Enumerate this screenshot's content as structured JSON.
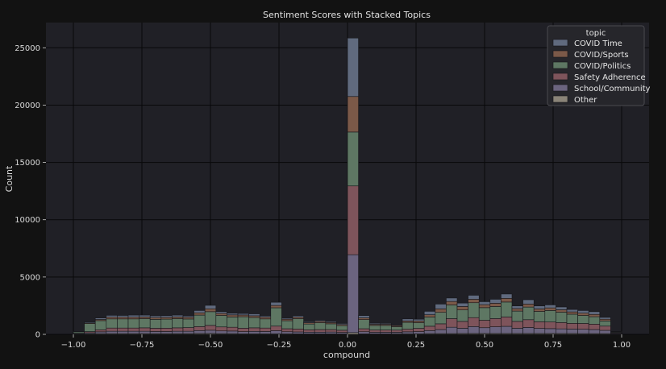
{
  "chart_data": {
    "type": "bar",
    "subtype": "stacked-histogram",
    "title": "Sentiment Scores with Stacked Topics",
    "xlabel": "compound",
    "ylabel": "Count",
    "xlim": [
      -1.1,
      1.1
    ],
    "ylim": [
      0,
      27200
    ],
    "xticks": [
      -1.0,
      -0.75,
      -0.5,
      -0.25,
      0.0,
      0.25,
      0.5,
      0.75,
      1.0
    ],
    "xtick_labels": [
      "−1.00",
      "−0.75",
      "−0.50",
      "−0.25",
      "0.00",
      "0.25",
      "0.50",
      "0.75",
      "1.00"
    ],
    "yticks": [
      0,
      5000,
      10000,
      15000,
      20000,
      25000
    ],
    "ytick_labels": [
      "0",
      "5000",
      "10000",
      "15000",
      "20000",
      "25000"
    ],
    "grid": true,
    "legend_title": "topic",
    "legend_position": "top-right",
    "bin_width": 0.04,
    "bin_starts": [
      -1.0,
      -0.96,
      -0.92,
      -0.88,
      -0.84,
      -0.8,
      -0.76,
      -0.72,
      -0.68,
      -0.64,
      -0.6,
      -0.56,
      -0.52,
      -0.48,
      -0.44,
      -0.4,
      -0.36,
      -0.32,
      -0.28,
      -0.24,
      -0.2,
      -0.16,
      -0.12,
      -0.08,
      -0.04,
      0.0,
      0.04,
      0.08,
      0.12,
      0.16,
      0.2,
      0.24,
      0.28,
      0.32,
      0.36,
      0.4,
      0.44,
      0.48,
      0.52,
      0.56,
      0.6,
      0.64,
      0.68,
      0.72,
      0.76,
      0.8,
      0.84,
      0.88,
      0.92,
      0.96
    ],
    "series": [
      {
        "name": "Other",
        "color": "#8a8478",
        "values": [
          50,
          60,
          70,
          70,
          70,
          70,
          70,
          70,
          70,
          70,
          70,
          80,
          80,
          70,
          70,
          60,
          60,
          60,
          60,
          60,
          50,
          50,
          50,
          50,
          50,
          150,
          50,
          50,
          50,
          60,
          60,
          60,
          70,
          70,
          70,
          80,
          80,
          80,
          80,
          80,
          80,
          80,
          80,
          80,
          80,
          80,
          70,
          70,
          70,
          40
        ]
      },
      {
        "name": "School/Community",
        "color": "#6b647f",
        "values": [
          30,
          80,
          150,
          200,
          200,
          200,
          200,
          180,
          180,
          200,
          200,
          250,
          280,
          230,
          220,
          180,
          200,
          190,
          260,
          170,
          160,
          140,
          140,
          150,
          120,
          6800,
          180,
          130,
          130,
          120,
          160,
          180,
          260,
          350,
          550,
          450,
          600,
          500,
          580,
          620,
          450,
          520,
          440,
          420,
          400,
          380,
          380,
          350,
          280,
          60
        ]
      },
      {
        "name": "Safety Adherence",
        "color": "#7e545b",
        "values": [
          20,
          100,
          180,
          280,
          280,
          280,
          300,
          280,
          290,
          300,
          320,
          350,
          420,
          350,
          330,
          300,
          310,
          300,
          400,
          260,
          260,
          210,
          230,
          220,
          190,
          6000,
          260,
          200,
          200,
          190,
          230,
          280,
          380,
          500,
          750,
          600,
          780,
          650,
          720,
          820,
          600,
          680,
          580,
          580,
          550,
          500,
          500,
          470,
          370,
          50
        ]
      },
      {
        "name": "COVID/Politics",
        "color": "#5e7763",
        "values": [
          120,
          700,
          800,
          800,
          800,
          800,
          800,
          780,
          790,
          800,
          750,
          1000,
          1200,
          1000,
          900,
          1000,
          900,
          800,
          1600,
          700,
          900,
          500,
          600,
          500,
          400,
          4700,
          800,
          400,
          400,
          300,
          600,
          500,
          800,
          1000,
          1200,
          1000,
          1300,
          1100,
          1050,
          1300,
          900,
          1100,
          900,
          1000,
          900,
          800,
          700,
          650,
          450,
          60
        ]
      },
      {
        "name": "COVID/Sports",
        "color": "#7b5948",
        "values": [
          20,
          60,
          100,
          150,
          150,
          150,
          150,
          150,
          150,
          150,
          150,
          200,
          250,
          180,
          180,
          150,
          150,
          150,
          200,
          130,
          130,
          120,
          120,
          110,
          100,
          3100,
          150,
          100,
          100,
          100,
          120,
          150,
          200,
          300,
          300,
          300,
          300,
          260,
          280,
          320,
          220,
          260,
          220,
          230,
          220,
          200,
          200,
          200,
          150,
          40
        ]
      },
      {
        "name": "COVID Time",
        "color": "#606a7e",
        "values": [
          10,
          80,
          130,
          160,
          150,
          180,
          160,
          150,
          150,
          160,
          120,
          200,
          300,
          150,
          140,
          130,
          170,
          110,
          280,
          90,
          120,
          80,
          90,
          90,
          90,
          5100,
          200,
          90,
          80,
          50,
          180,
          150,
          300,
          420,
          300,
          300,
          350,
          260,
          350,
          380,
          230,
          380,
          260,
          260,
          240,
          210,
          230,
          240,
          160,
          10
        ]
      }
    ]
  }
}
